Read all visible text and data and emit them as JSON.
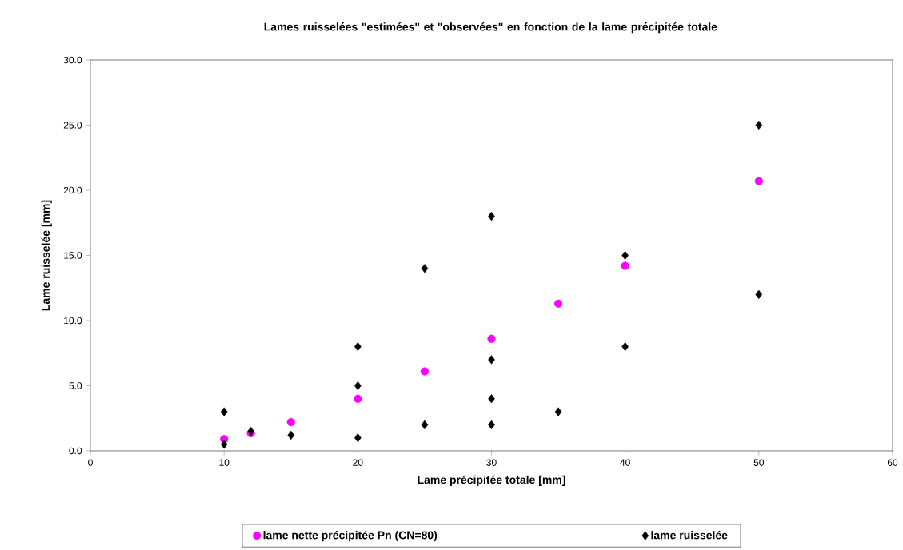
{
  "chart_data": {
    "type": "scatter",
    "title": "Lames ruisselées \"estimées\" et \"observées\" en fonction de la lame précipitée totale",
    "xlabel": "Lame précipitée totale [mm]",
    "ylabel": "Lame ruisselée [mm]",
    "series": [
      {
        "name": "lame nette précipitée Pn (CN=80)",
        "color": "#ff00ff",
        "marker": "circle",
        "x": [
          10,
          12,
          15,
          20,
          25,
          30,
          35,
          40,
          50
        ],
        "values": [
          0.9,
          1.35,
          2.2,
          4.0,
          6.1,
          8.6,
          11.3,
          14.2,
          20.7
        ]
      },
      {
        "name": "lame ruisselée",
        "color": "#000000",
        "marker": "diamond",
        "x": [
          10,
          10,
          12,
          15,
          20,
          20,
          20,
          25,
          25,
          30,
          30,
          30,
          30,
          35,
          40,
          40,
          50,
          50
        ],
        "values": [
          3,
          0.5,
          1.5,
          1.2,
          8,
          5,
          1,
          14,
          2,
          18,
          7,
          4,
          2,
          3,
          15,
          8,
          25,
          12
        ]
      }
    ],
    "xlim": [
      0,
      60
    ],
    "xticks": [
      0,
      10,
      20,
      30,
      40,
      50,
      60
    ],
    "ylim": [
      0,
      30
    ],
    "yticks": [
      {
        "value": 0,
        "label": "0.0"
      },
      {
        "value": 5,
        "label": "5.0"
      },
      {
        "value": 10,
        "label": "10.0"
      },
      {
        "value": 15,
        "label": "15.0"
      },
      {
        "value": 20,
        "label": "20.0"
      },
      {
        "value": 25,
        "label": "25.0"
      },
      {
        "value": 30,
        "label": "30.0"
      }
    ],
    "grid": false,
    "legend": "bottom"
  }
}
